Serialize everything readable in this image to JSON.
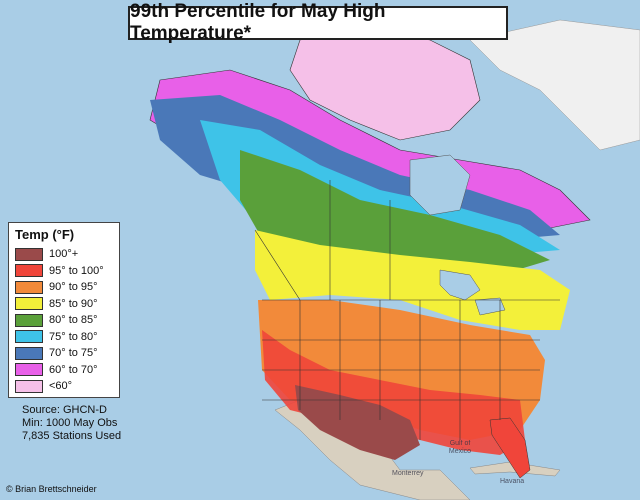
{
  "title": "99th Percentile for May High Temperature*",
  "legend": {
    "title": "Temp (°F)",
    "items": [
      {
        "label": "100°+",
        "color": "#9a4a4a"
      },
      {
        "label": "95° to 100°",
        "color": "#f0453a"
      },
      {
        "label": "90° to 95°",
        "color": "#f28a3a"
      },
      {
        "label": "85° to 90°",
        "color": "#f3f03a"
      },
      {
        "label": "80° to 85°",
        "color": "#5aa03a"
      },
      {
        "label": "75° to 80°",
        "color": "#3ec3e8"
      },
      {
        "label": "70° to 75°",
        "color": "#4a78b8"
      },
      {
        "label": "60° to 70°",
        "color": "#e860e8"
      },
      {
        "label": "<60°",
        "color": "#f5c0e8"
      }
    ]
  },
  "source": {
    "line1": "Source: GHCN-D",
    "line2": "Min: 1000 May Obs",
    "line3": "7,835 Stations Used"
  },
  "credit": "© Brian Brettschneider",
  "map_labels": {
    "gulf": "Gulf of Mexico",
    "havana": "Havana",
    "monterrey": "Monterrey"
  }
}
